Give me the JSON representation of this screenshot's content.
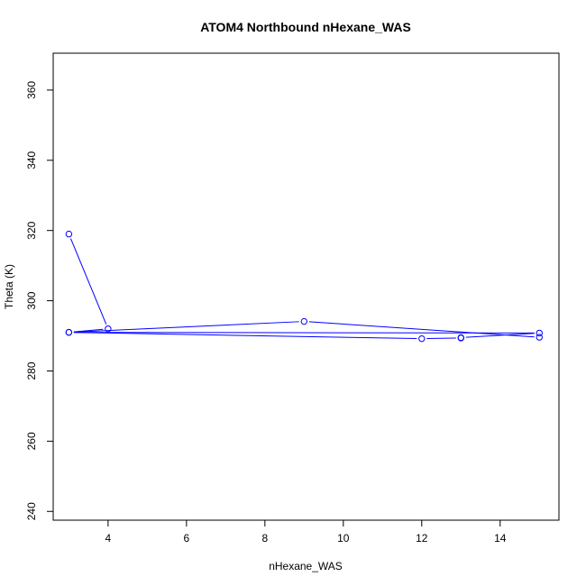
{
  "chart_data": {
    "type": "line",
    "title": "ATOM4 Northbound nHexane_WAS",
    "xlabel": "nHexane_WAS",
    "ylabel": "Theta (K)",
    "xlim": [
      2.6,
      15.5
    ],
    "ylim": [
      237.5,
      370.5
    ],
    "xticks": [
      4,
      6,
      8,
      10,
      12,
      14
    ],
    "yticks": [
      240,
      260,
      280,
      300,
      320,
      340,
      360
    ],
    "grid": false,
    "legend": "none",
    "series": [
      {
        "color": "#0000ff",
        "marker": "open-circle",
        "x": [
          3,
          4,
          3,
          15,
          13,
          13,
          12,
          3,
          9,
          15
        ],
        "y": [
          319.0,
          292.0,
          291.0,
          290.8,
          289.5,
          289.4,
          289.2,
          291.0,
          294.1,
          289.6
        ]
      }
    ]
  }
}
